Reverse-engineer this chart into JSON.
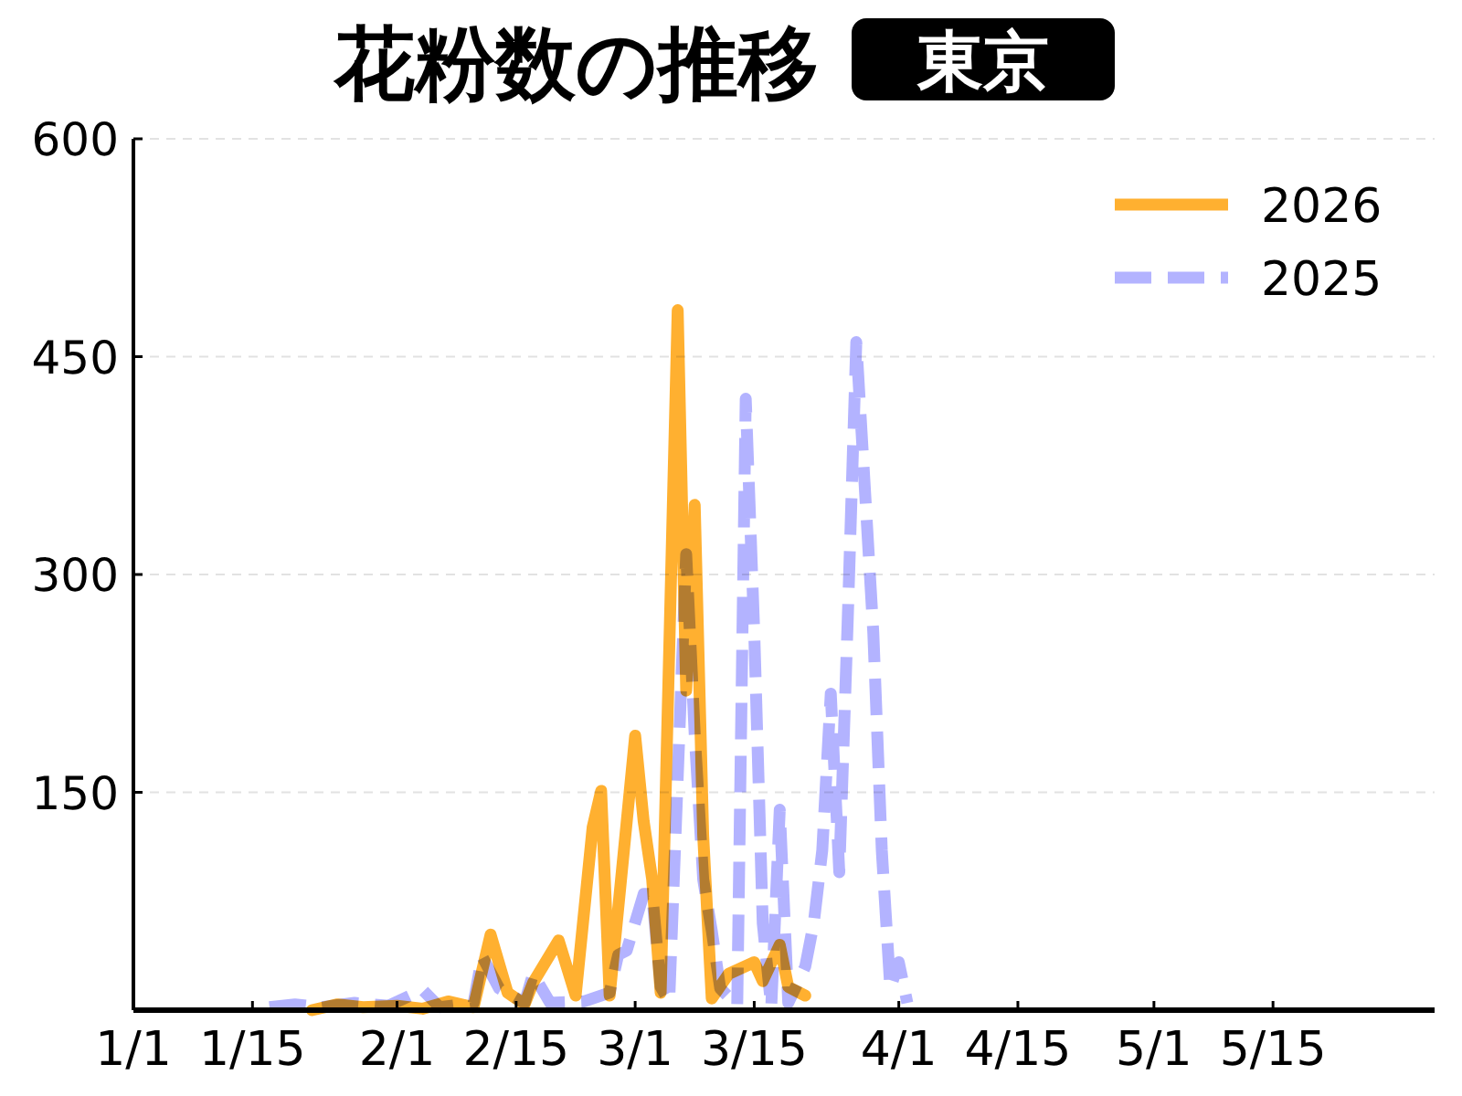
{
  "chart_data": {
    "type": "line",
    "title": "花粉数の推移",
    "subtitle": "東京",
    "xlim": [
      "--01-01",
      "--06-03"
    ],
    "xticks": [
      {
        "value": "--01-01",
        "label": "1/1"
      },
      {
        "value": "--01-15",
        "label": "1/15"
      },
      {
        "value": "--02-01",
        "label": "2/1"
      },
      {
        "value": "--02-15",
        "label": "2/15"
      },
      {
        "value": "--03-01",
        "label": "3/1"
      },
      {
        "value": "--03-15",
        "label": "3/15"
      },
      {
        "value": "--04-01",
        "label": "4/1"
      },
      {
        "value": "--04-15",
        "label": "4/15"
      },
      {
        "value": "--05-01",
        "label": "5/1"
      },
      {
        "value": "--05-15",
        "label": "5/15"
      }
    ],
    "ylim": [
      0,
      600
    ],
    "yticks": [
      150,
      300,
      450,
      600
    ],
    "grid": "y",
    "legend": "top right",
    "series": [
      {
        "name": "2026",
        "color": "#ffb030",
        "line_style": "solid",
        "x": [
          "--01-22",
          "--01-25",
          "--01-28",
          "--02-01",
          "--02-04",
          "--02-07",
          "--02-10",
          "--02-12",
          "--02-14",
          "--02-16",
          "--02-17",
          "--02-20",
          "--02-22",
          "--02-24",
          "--02-25",
          "--02-26",
          "--03-01",
          "--03-02",
          "--03-03",
          "--03-04",
          "--03-06",
          "--03-07",
          "--03-08",
          "--03-09",
          "--03-10",
          "--03-12",
          "--03-15",
          "--03-16",
          "--03-18",
          "--03-19",
          "--03-21"
        ],
        "values": [
          0,
          4,
          2,
          3,
          1,
          6,
          2,
          52,
          12,
          4,
          19,
          48,
          10,
          126,
          151,
          10,
          189,
          130,
          90,
          12,
          482,
          220,
          348,
          120,
          8,
          25,
          33,
          20,
          45,
          16,
          10
        ]
      },
      {
        "name": "2025",
        "color": "#b3b3ff",
        "line_style": "dashed",
        "x": [
          "--01-17",
          "--01-20",
          "--01-23",
          "--01-27",
          "--01-31",
          "--02-04",
          "--02-06",
          "--02-10",
          "--02-11",
          "--02-13",
          "--02-16",
          "--02-17",
          "--02-19",
          "--02-23",
          "--02-26",
          "--02-27",
          "--02-28",
          "--03-02",
          "--03-03",
          "--03-04",
          "--03-05",
          "--03-07",
          "--03-08",
          "--03-09",
          "--03-10",
          "--03-11",
          "--03-13",
          "--03-14",
          "--03-15",
          "--03-16",
          "--03-17",
          "--03-18",
          "--03-19",
          "--03-21",
          "--03-22",
          "--03-23",
          "--03-24",
          "--03-25",
          "--03-26",
          "--03-27",
          "--03-28",
          "--03-29",
          "--03-30",
          "--03-31",
          "--04-01",
          "--04-02"
        ],
        "values": [
          2,
          4,
          2,
          5,
          3,
          14,
          2,
          5,
          37,
          15,
          5,
          25,
          5,
          6,
          12,
          38,
          41,
          80,
          80,
          16,
          6,
          314,
          190,
          90,
          55,
          15,
          3,
          421,
          260,
          60,
          2,
          138,
          5,
          30,
          60,
          110,
          218,
          95,
          270,
          460,
          360,
          260,
          110,
          15,
          33,
          5
        ]
      }
    ]
  }
}
